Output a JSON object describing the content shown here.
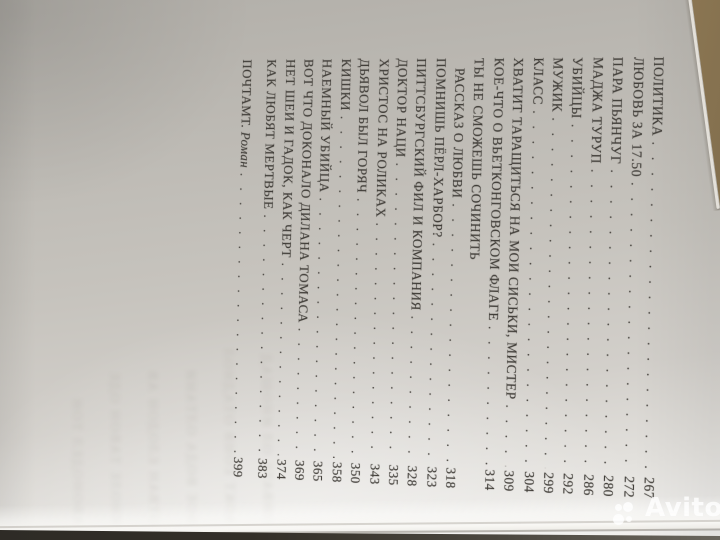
{
  "colors": {
    "paper": "#c6c3bd",
    "paper_dark": "#b2afa9",
    "paper_light": "#efeeec",
    "ink": "#403d38",
    "table_brown": "#9a825c",
    "edge_dark": "#332f28",
    "wm": "#ffffff"
  },
  "toc": {
    "entries": [
      {
        "title": "ПОЛИТИКА",
        "page": "267"
      },
      {
        "title": "ЛЮБОВЬ ЗА 17.50",
        "page": "272"
      },
      {
        "title": "ПАРА ПЬЯНЧУГ",
        "page": "280"
      },
      {
        "title": "МАДЖА ТУРУП",
        "page": "286"
      },
      {
        "title": "УБИЙЦЫ",
        "page": "292"
      },
      {
        "title": "МУЖИК",
        "page": "299"
      },
      {
        "title": "КЛАСС",
        "page": "304"
      },
      {
        "title": "ХВАТИТ ТАРАЩИТЬСЯ НА МОИ СИСЬКИ, МИСТЕР",
        "page": "309"
      },
      {
        "title": "КОЕ-ЧТО О ВЬЕТКОНГОВСКОМ ФЛАГЕ",
        "page": "314"
      },
      {
        "title": "ТЫ НЕ СМОЖЕШЬ СОЧИНИТЬ",
        "page": "",
        "no_leader": true
      },
      {
        "title": "РАССКАЗ О ЛЮБВИ",
        "page": "318",
        "indent": true
      },
      {
        "title": "ПОМНИШЬ ПЁРЛ-ХАРБОР?",
        "page": "323"
      },
      {
        "title": "ПИТТСБУРГСКИЙ ФИЛ И КОМПАНИЯ",
        "page": "328"
      },
      {
        "title": "ДОКТОР НАЦИ",
        "page": "335"
      },
      {
        "title": "ХРИСТОС НА РОЛИКАХ",
        "page": "343"
      },
      {
        "title": "ДЬЯВОЛ БЫЛ ГОРЯЧ",
        "page": "350"
      },
      {
        "title": "КИШКИ",
        "page": "358"
      },
      {
        "title": "НАЕМНЫЙ УБИЙЦА",
        "page": "365"
      },
      {
        "title": "ВОТ ЧТО ДОКОНАЛО ДИЛАНА ТОМАСА",
        "page": "369"
      },
      {
        "title": "НЕТ ШЕИ И ГАДОК, КАК ЧЕРТ",
        "page": "374"
      },
      {
        "title": "КАК ЛЮБЯТ МЕРТВЫЕ",
        "page": "383"
      },
      {
        "title": "ПОЧТАМТ.",
        "subtitle": "Роман",
        "page": "399",
        "section_gap": true
      }
    ]
  },
  "showthrough": {
    "lines": [
      "ОНВАТЕ ОЛ ИНОШАД",
      "АОКТ ЕОНВ ОТАДНОЛ",
      "НОЕ ВОДА ОЛТАНИ",
      "ОТВАН ЕЛОДОН АВ",
      "ИНОЛЕ ТАВОН ОДЕ",
      "АВОНОДЕЛ ТОН"
    ]
  },
  "watermark": {
    "label": "Avito"
  }
}
